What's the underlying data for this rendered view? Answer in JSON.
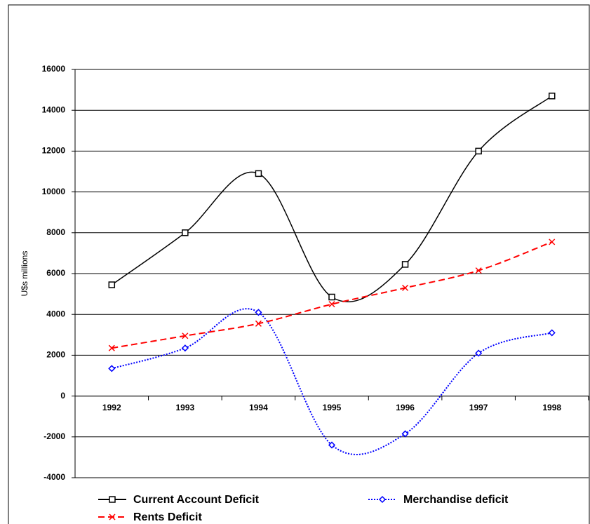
{
  "chart_data": {
    "type": "line",
    "y_label": "U$s millions",
    "categories": [
      "1992",
      "1993",
      "1994",
      "1995",
      "1996",
      "1997",
      "1998"
    ],
    "series": [
      {
        "name": "Current Account Deficit",
        "color": "#000000",
        "marker": "square",
        "dash": "solid",
        "values": [
          5450,
          8000,
          10900,
          4850,
          6450,
          12000,
          14700
        ]
      },
      {
        "name": "Merchandise deficit",
        "color": "#0000ff",
        "marker": "diamond",
        "dash": "dotted",
        "values": [
          1350,
          2350,
          4100,
          -2400,
          -1850,
          2100,
          3100
        ]
      },
      {
        "name": "Rents Deficit",
        "color": "#ff0000",
        "marker": "cross",
        "dash": "dashed",
        "values": [
          2350,
          2950,
          3550,
          4500,
          5300,
          6150,
          7550
        ]
      }
    ],
    "ylim": [
      -4000,
      16000
    ],
    "yticks": [
      -4000,
      -2000,
      0,
      2000,
      4000,
      6000,
      8000,
      10000,
      12000,
      14000,
      16000
    ],
    "grid": true,
    "smooth": true,
    "legend": "bottom"
  }
}
